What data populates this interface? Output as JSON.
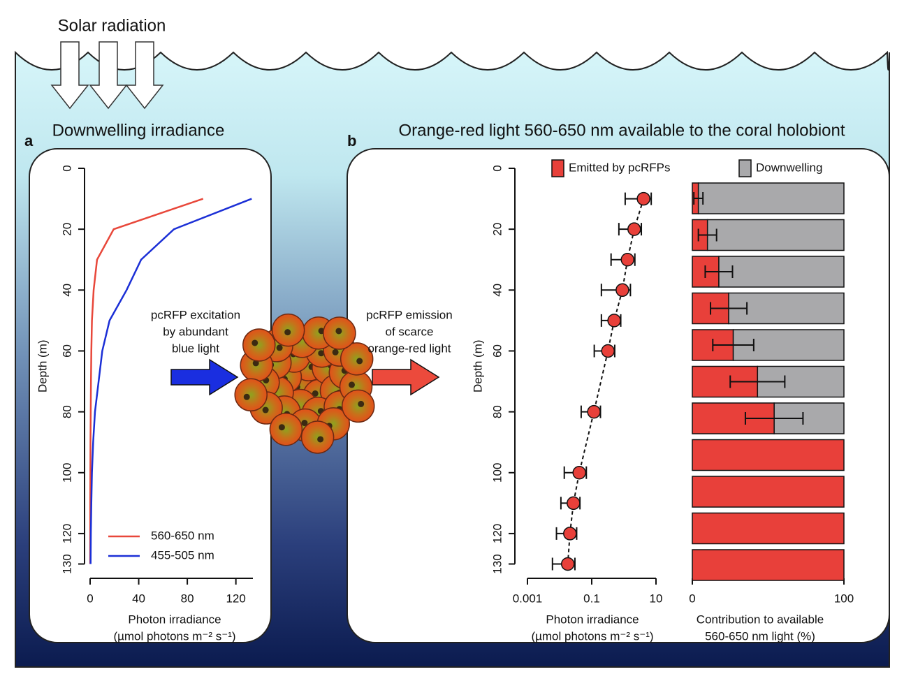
{
  "labels": {
    "solar": "Solar radiation",
    "panel_a": "a",
    "title_a": "Downwelling irradiance",
    "panel_b": "b",
    "title_b": "Orange-red light 560-650 nm available to the coral holobiont",
    "excitation": [
      "pcRFP excitation",
      "by abundant",
      "blue light"
    ],
    "emission": [
      "pcRFP emission",
      "of scarce",
      "orange-red light"
    ]
  },
  "chart_data": [
    {
      "type": "line",
      "ylabel": "Depth (m)",
      "xlabel": [
        "Photon irradiance",
        "(µmol photons m⁻² s⁻¹)"
      ],
      "depth": [
        10,
        20,
        30,
        40,
        50,
        60,
        70,
        80,
        90,
        100,
        110,
        120,
        130
      ],
      "series": [
        {
          "name": "560-650 nm",
          "color": "#e8473a",
          "values": [
            93,
            19.4,
            5.7,
            2.9,
            1.5,
            1,
            0.7,
            0.5,
            0.3,
            0.2,
            0.1,
            0.1,
            0.05
          ]
        },
        {
          "name": "455-505 nm",
          "color": "#1b2fd6",
          "values": [
            133,
            69,
            42,
            30,
            16,
            10,
            7,
            4,
            2.5,
            1.5,
            1,
            0.6,
            0.4
          ]
        }
      ],
      "xlim": [
        0,
        134
      ],
      "xticks": [
        0,
        40,
        80,
        120
      ],
      "ylim": [
        0,
        130
      ],
      "yticks": [
        0,
        20,
        40,
        60,
        80,
        100,
        120,
        130
      ],
      "legend": "lower right"
    },
    {
      "type": "scatter",
      "ylabel": "Depth (m)",
      "xlabel": [
        "Photon irradiance",
        "(µmol photons m⁻² s⁻¹)"
      ],
      "depth": [
        10,
        20,
        30,
        40,
        50,
        60,
        80,
        100,
        110,
        120,
        130
      ],
      "values": [
        4.1,
        2.1,
        1.3,
        0.9,
        0.5,
        0.32,
        0.117,
        0.041,
        0.027,
        0.021,
        0.018
      ],
      "errors": [
        3,
        1.4,
        0.9,
        0.7,
        0.3,
        0.2,
        0.07,
        0.027,
        0.016,
        0.013,
        0.012
      ],
      "color": "#e8403a",
      "log_x": true,
      "xlim": [
        0.001,
        10
      ],
      "xticks": [
        0.001,
        0.1,
        10
      ],
      "ylim": [
        0,
        130
      ],
      "yticks": [
        0,
        20,
        40,
        60,
        80,
        100,
        120,
        130
      ]
    },
    {
      "type": "bar",
      "orientation": "horizontal",
      "stacked": true,
      "xlabel": [
        "Contribution to available",
        "560-650 nm light (%)"
      ],
      "categories": [
        null,
        null,
        null,
        null,
        null,
        null,
        null,
        null,
        null,
        null,
        null
      ],
      "series": [
        {
          "name": "Emitted by pcRFPs",
          "color": "#e8403a",
          "values": [
            4,
            10,
            17.5,
            24,
            27,
            43,
            54,
            100,
            100,
            100,
            100
          ],
          "errors": [
            3,
            6,
            9,
            12,
            13.5,
            18,
            19,
            null,
            null,
            null,
            null
          ]
        },
        {
          "name": "Downwelling",
          "color": "#a9a9ab",
          "values": [
            96,
            90,
            82.5,
            76,
            73,
            57,
            46,
            0,
            0,
            0,
            0
          ]
        }
      ],
      "xlim": [
        0,
        100
      ],
      "xticks": [
        0,
        100
      ],
      "legend": "top"
    }
  ]
}
